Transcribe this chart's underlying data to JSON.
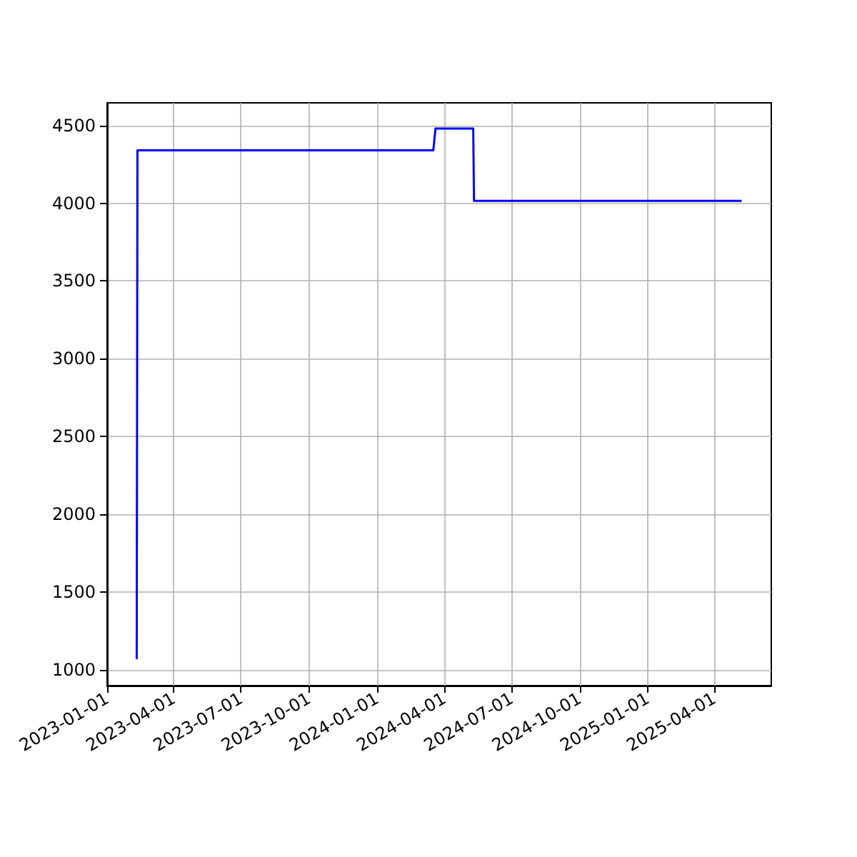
{
  "chart_data": {
    "type": "line",
    "x": [
      "2023-02-10",
      "2023-02-11",
      "2024-03-17",
      "2024-03-20",
      "2024-05-10",
      "2024-05-11",
      "2025-05-08"
    ],
    "series": [
      {
        "color": "#0000ff",
        "values": [
          1070,
          4340,
          4340,
          4480,
          4480,
          4015,
          4015
        ]
      }
    ],
    "xlim": [
      "2023-01-01",
      "2025-06-17"
    ],
    "xticks": [
      "2023-01-01",
      "2023-04-01",
      "2023-07-01",
      "2023-10-01",
      "2024-01-01",
      "2024-04-01",
      "2024-07-01",
      "2024-10-01",
      "2025-01-01",
      "2025-04-01"
    ],
    "ylim": [
      900,
      4645
    ],
    "yticks": [
      1000,
      1500,
      2000,
      2500,
      3000,
      3500,
      4000,
      4500
    ],
    "grid": true,
    "marker": "none",
    "line_style": "solid"
  }
}
